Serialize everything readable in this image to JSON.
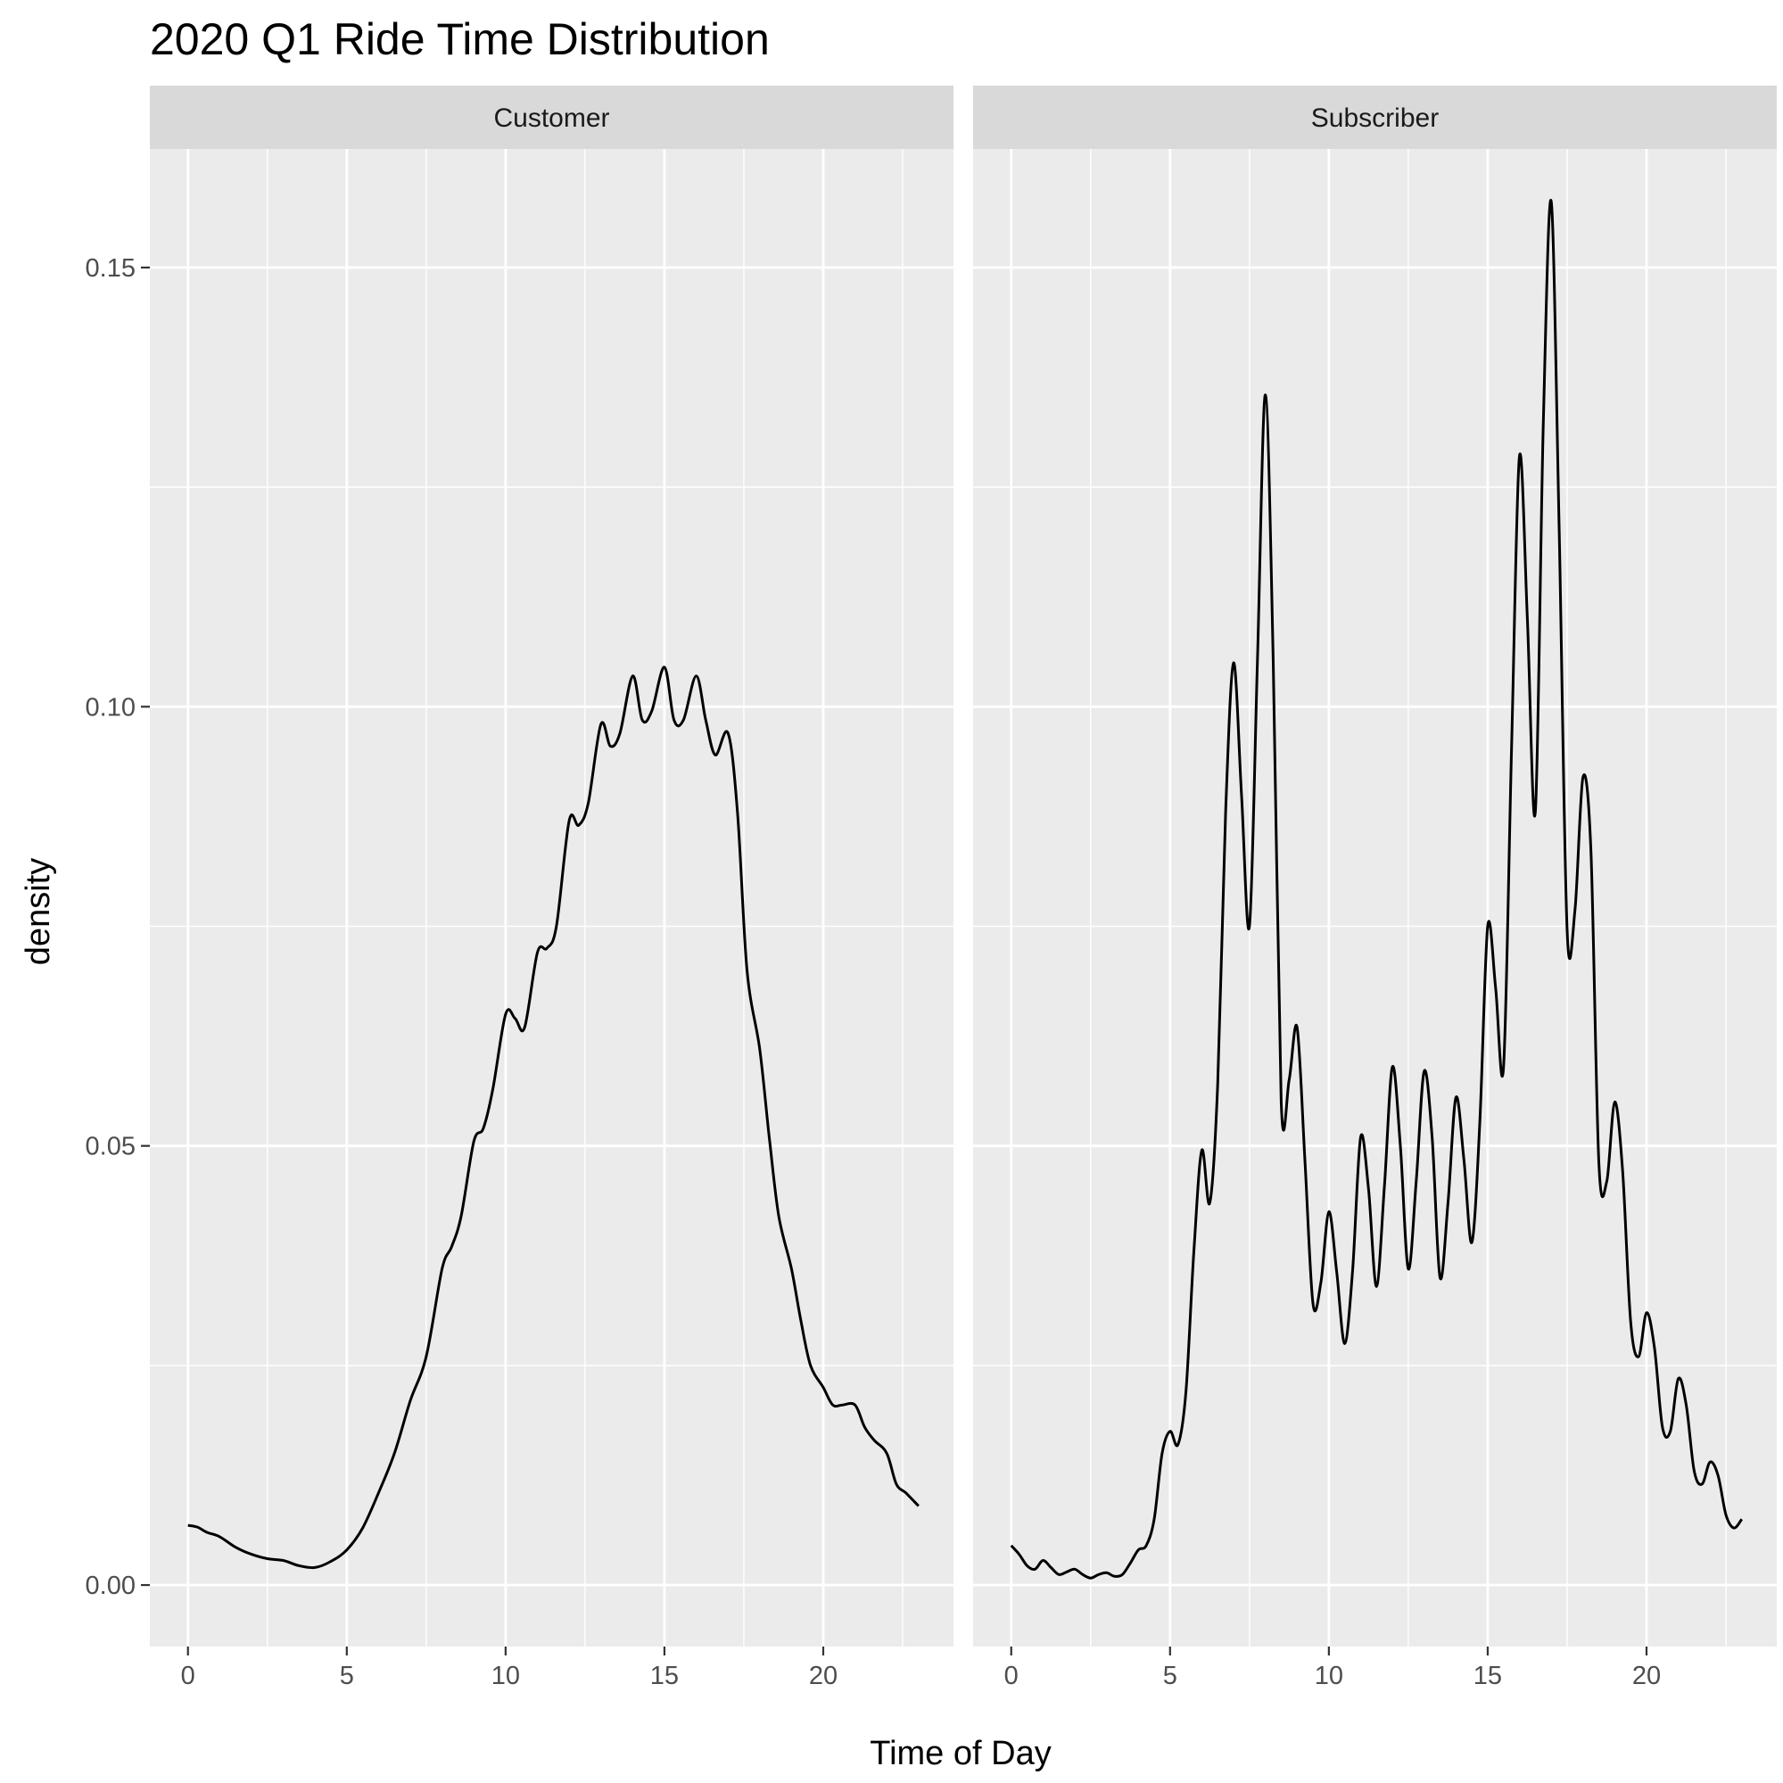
{
  "chart_data": {
    "type": "line",
    "title": "2020 Q1 Ride Time Distribution",
    "xlabel": "Time of Day",
    "ylabel": "density",
    "xlim": [
      -1.2,
      24.1
    ],
    "ylim": [
      -0.007,
      0.1635
    ],
    "x_ticks": [
      0,
      5,
      10,
      15,
      20
    ],
    "x_tick_labels": [
      "0",
      "5",
      "10",
      "15",
      "20"
    ],
    "y_ticks": [
      0,
      0.05,
      0.1,
      0.15
    ],
    "y_tick_labels": [
      "0.00",
      "0.05",
      "0.10",
      "0.15"
    ],
    "grid": true,
    "colors": {
      "panel_bg": "#ebebeb",
      "strip_bg": "#d9d9d9",
      "grid": "#ffffff",
      "line": "#000000"
    },
    "series": [
      {
        "name": "Customer",
        "x": [
          0,
          0.3,
          0.6,
          1,
          1.5,
          2,
          2.5,
          3,
          3.5,
          4,
          4.5,
          5,
          5.5,
          6,
          6.5,
          7,
          7.5,
          8,
          8.3,
          8.6,
          9,
          9.3,
          9.6,
          10,
          10.3,
          10.6,
          11,
          11.3,
          11.6,
          12,
          12.3,
          12.6,
          13,
          13.3,
          13.6,
          14,
          14.3,
          14.6,
          15,
          15.3,
          15.6,
          16,
          16.3,
          16.6,
          17,
          17.3,
          17.6,
          18,
          18.3,
          18.6,
          19,
          19.3,
          19.6,
          20,
          20.3,
          20.6,
          21,
          21.3,
          21.6,
          22,
          22.3,
          22.6,
          23
        ],
        "values": [
          0.0068,
          0.0066,
          0.006,
          0.0055,
          0.0043,
          0.0035,
          0.003,
          0.0028,
          0.0022,
          0.002,
          0.0027,
          0.004,
          0.0065,
          0.0105,
          0.015,
          0.021,
          0.026,
          0.036,
          0.0385,
          0.042,
          0.0505,
          0.052,
          0.0565,
          0.065,
          0.0645,
          0.0635,
          0.072,
          0.0725,
          0.075,
          0.087,
          0.0865,
          0.089,
          0.098,
          0.0955,
          0.097,
          0.1035,
          0.0985,
          0.0995,
          0.1045,
          0.0985,
          0.0985,
          0.1035,
          0.0985,
          0.0945,
          0.097,
          0.088,
          0.07,
          0.061,
          0.051,
          0.042,
          0.036,
          0.03,
          0.025,
          0.0225,
          0.0205,
          0.0205,
          0.0205,
          0.018,
          0.0165,
          0.015,
          0.0115,
          0.0105,
          0.009
        ]
      },
      {
        "name": "Subscriber",
        "x": [
          0,
          0.25,
          0.5,
          0.75,
          1,
          1.25,
          1.5,
          1.75,
          2,
          2.25,
          2.5,
          2.75,
          3,
          3.25,
          3.5,
          3.75,
          4,
          4.25,
          4.5,
          4.75,
          5,
          5.25,
          5.5,
          5.75,
          6,
          6.25,
          6.5,
          6.75,
          7,
          7.25,
          7.5,
          7.75,
          8,
          8.25,
          8.5,
          8.75,
          9,
          9.25,
          9.5,
          9.75,
          10,
          10.25,
          10.5,
          10.75,
          11,
          11.25,
          11.5,
          11.75,
          12,
          12.25,
          12.5,
          12.75,
          13,
          13.25,
          13.5,
          13.75,
          14,
          14.25,
          14.5,
          14.75,
          15,
          15.25,
          15.5,
          15.75,
          16,
          16.25,
          16.5,
          16.75,
          17,
          17.25,
          17.5,
          17.75,
          18,
          18.25,
          18.5,
          18.75,
          19,
          19.25,
          19.5,
          19.75,
          20,
          20.25,
          20.5,
          20.75,
          21,
          21.25,
          21.5,
          21.75,
          22,
          22.25,
          22.5,
          22.75,
          23
        ],
        "values": [
          0.0045,
          0.0035,
          0.0022,
          0.0018,
          0.0028,
          0.002,
          0.0012,
          0.0015,
          0.0018,
          0.0012,
          0.0008,
          0.0012,
          0.0014,
          0.001,
          0.0012,
          0.0025,
          0.004,
          0.0045,
          0.0075,
          0.015,
          0.0175,
          0.016,
          0.022,
          0.038,
          0.0495,
          0.0435,
          0.057,
          0.088,
          0.105,
          0.09,
          0.075,
          0.105,
          0.1355,
          0.105,
          0.055,
          0.0575,
          0.0635,
          0.048,
          0.032,
          0.0345,
          0.0425,
          0.0355,
          0.0275,
          0.036,
          0.051,
          0.045,
          0.034,
          0.0455,
          0.059,
          0.05,
          0.036,
          0.046,
          0.0585,
          0.051,
          0.035,
          0.0435,
          0.0555,
          0.0485,
          0.039,
          0.0525,
          0.075,
          0.068,
          0.059,
          0.095,
          0.1285,
          0.11,
          0.088,
          0.132,
          0.1575,
          0.12,
          0.0745,
          0.077,
          0.092,
          0.0835,
          0.048,
          0.046,
          0.055,
          0.047,
          0.03,
          0.026,
          0.031,
          0.027,
          0.018,
          0.0175,
          0.0235,
          0.0205,
          0.013,
          0.0115,
          0.014,
          0.0125,
          0.008,
          0.0065,
          0.0075
        ]
      }
    ]
  }
}
